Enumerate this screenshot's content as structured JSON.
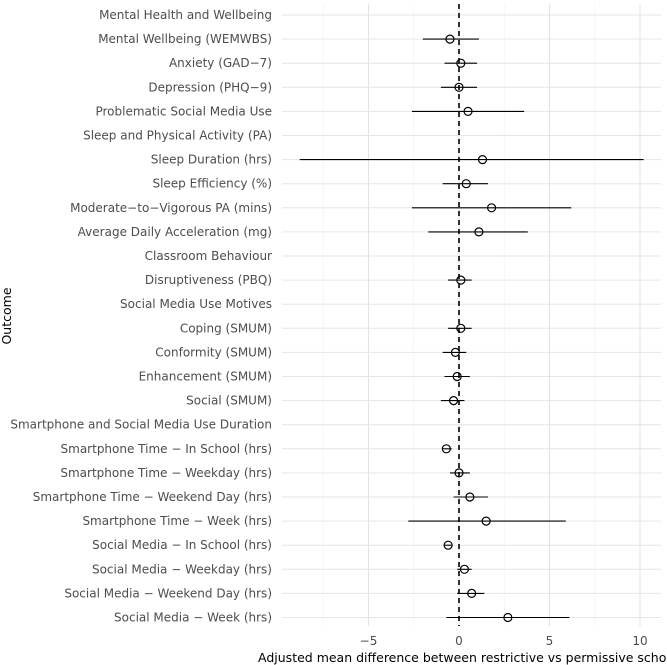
{
  "chart_data": {
    "type": "forest",
    "title": "",
    "xlabel": "Adjusted mean difference between restrictive vs permissive schools",
    "ylabel": "Outcome",
    "xlim": [
      -9,
      10.5
    ],
    "xticks": [
      -5,
      0,
      5,
      10
    ],
    "xtick_labels": [
      "−5",
      "0",
      "5",
      "10"
    ],
    "reference_line": 0,
    "rows": [
      {
        "label": "Mental Health and Wellbeing",
        "header": true
      },
      {
        "label": "Mental Wellbeing (WEMWBS)",
        "estimate": -0.5,
        "lower": -2.0,
        "upper": 1.1
      },
      {
        "label": "Anxiety (GAD−7)",
        "estimate": 0.1,
        "lower": -0.8,
        "upper": 1.0
      },
      {
        "label": "Depression (PHQ−9)",
        "estimate": 0.0,
        "lower": -1.0,
        "upper": 1.0
      },
      {
        "label": "Problematic Social Media Use",
        "estimate": 0.5,
        "lower": -2.6,
        "upper": 3.6
      },
      {
        "label": "Sleep and Physical Activity (PA)",
        "header": true
      },
      {
        "label": "Sleep Duration (hrs)",
        "estimate": 1.3,
        "lower": -8.8,
        "upper": 10.2
      },
      {
        "label": "Sleep Efficiency (%)",
        "estimate": 0.4,
        "lower": -0.9,
        "upper": 1.6
      },
      {
        "label": "Moderate−to−Vigorous PA (mins)",
        "estimate": 1.8,
        "lower": -2.6,
        "upper": 6.2
      },
      {
        "label": "Average Daily Acceleration (mg)",
        "estimate": 1.1,
        "lower": -1.7,
        "upper": 3.8
      },
      {
        "label": "Classroom Behaviour",
        "header": true
      },
      {
        "label": "Disruptiveness (PBQ)",
        "estimate": 0.1,
        "lower": -0.6,
        "upper": 0.7
      },
      {
        "label": "Social Media Use Motives",
        "header": true
      },
      {
        "label": "Coping (SMUM)",
        "estimate": 0.1,
        "lower": -0.6,
        "upper": 0.7
      },
      {
        "label": "Conformity (SMUM)",
        "estimate": -0.2,
        "lower": -0.9,
        "upper": 0.4
      },
      {
        "label": "Enhancement (SMUM)",
        "estimate": -0.1,
        "lower": -0.8,
        "upper": 0.6
      },
      {
        "label": "Social (SMUM)",
        "estimate": -0.3,
        "lower": -1.0,
        "upper": 0.3
      },
      {
        "label": "Smartphone and Social Media Use Duration",
        "header": true
      },
      {
        "label": "Smartphone Time − In School (hrs)",
        "estimate": -0.7,
        "lower": -0.9,
        "upper": -0.4
      },
      {
        "label": "Smartphone Time − Weekday (hrs)",
        "estimate": 0.0,
        "lower": -0.5,
        "upper": 0.6
      },
      {
        "label": "Smartphone Time − Weekend Day (hrs)",
        "estimate": 0.6,
        "lower": -0.3,
        "upper": 1.6
      },
      {
        "label": "Smartphone Time − Week (hrs)",
        "estimate": 1.5,
        "lower": -2.8,
        "upper": 5.9
      },
      {
        "label": "Social Media − In School (hrs)",
        "estimate": -0.6,
        "lower": -0.8,
        "upper": -0.4
      },
      {
        "label": "Social Media − Weekday (hrs)",
        "estimate": 0.3,
        "lower": -0.1,
        "upper": 0.7
      },
      {
        "label": "Social Media − Weekend Day (hrs)",
        "estimate": 0.7,
        "lower": -0.1,
        "upper": 1.4
      },
      {
        "label": "Social Media − Week (hrs)",
        "estimate": 2.7,
        "lower": -0.7,
        "upper": 6.1
      }
    ]
  }
}
